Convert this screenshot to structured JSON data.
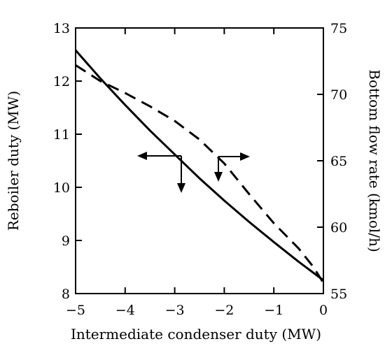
{
  "chart_data": {
    "type": "line",
    "xlabel": "Intermediate condenser duty (MW)",
    "ylabel_left": "Reboiler duty (MW)",
    "ylabel_right": "Bottom flow rate (kmol/h)",
    "xlim": [
      -5,
      0
    ],
    "ylim_left": [
      8,
      13
    ],
    "ylim_right": [
      55,
      75
    ],
    "x_ticks": [
      "−5",
      "−4",
      "−3",
      "−2",
      "−1",
      "0"
    ],
    "x_tick_values": [
      -5,
      -4,
      -3,
      -2,
      -1,
      0
    ],
    "y_left_ticks": [
      "8",
      "9",
      "10",
      "11",
      "12",
      "13"
    ],
    "y_left_tick_values": [
      8,
      9,
      10,
      11,
      12,
      13
    ],
    "y_right_ticks": [
      "55",
      "60",
      "65",
      "70",
      "75"
    ],
    "y_right_tick_values": [
      55,
      60,
      65,
      70,
      75
    ],
    "grid": false,
    "legend": "none",
    "series": [
      {
        "axis": "left",
        "style": "solid",
        "color": "#000000",
        "x": [
          -5.0,
          -4.5,
          -4.0,
          -3.5,
          -3.0,
          -2.5,
          -2.0,
          -1.5,
          -1.0,
          -0.5,
          0.0
        ],
        "y": [
          12.58,
          12.05,
          11.55,
          11.07,
          10.62,
          10.17,
          9.75,
          9.35,
          8.97,
          8.6,
          8.25
        ]
      },
      {
        "axis": "right",
        "style": "dashed",
        "color": "#000000",
        "x": [
          -5.0,
          -4.5,
          -4.0,
          -3.5,
          -3.0,
          -2.5,
          -2.0,
          -1.5,
          -1.0,
          -0.5,
          -0.2,
          0.0
        ],
        "y": [
          72.2,
          71.0,
          70.1,
          69.1,
          68.0,
          66.6,
          64.8,
          62.5,
          60.3,
          58.4,
          57.0,
          55.8
        ]
      }
    ],
    "annotations": [
      {
        "name": "left-axis-arrow",
        "meaning": "solid curve reads on left axis"
      },
      {
        "name": "right-axis-arrow",
        "meaning": "dashed curve reads on right axis"
      }
    ]
  }
}
